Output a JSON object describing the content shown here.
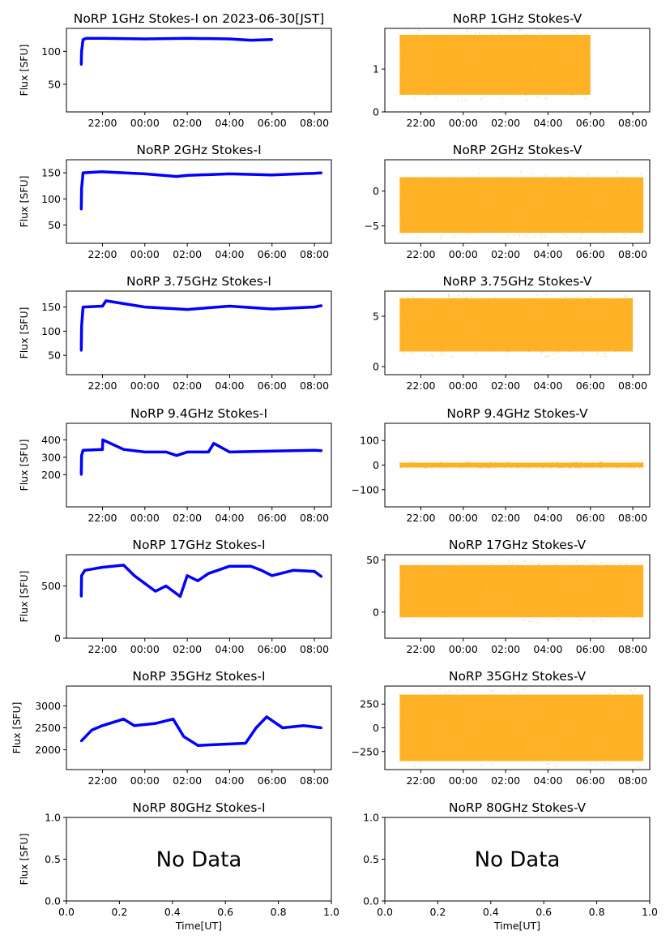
{
  "figure": {
    "ylabel": "Flux [SFU]",
    "xlabel": "Time[UT]",
    "time_ticks": [
      "22:00",
      "00:00",
      "02:00",
      "04:00",
      "06:00",
      "08:00"
    ],
    "no_data_text": "No Data",
    "colors": {
      "stokes_i": "#0000ff",
      "stokes_v": "#ffa500",
      "axes": "#000000"
    }
  },
  "chart_data": [
    {
      "type": "scatter",
      "title": "NoRP 1GHz Stokes-I on 2023-06-30[JST]",
      "panel": "1GHz-I",
      "ylim": [
        8,
        135
      ],
      "yticks": [
        50,
        100
      ],
      "ylabel": "Flux [SFU]",
      "series": [
        {
          "x": [
            "21:00",
            "21:01",
            "21:05",
            "21:15",
            "22:00",
            "00:00",
            "02:00",
            "04:00",
            "05:00",
            "06:00"
          ],
          "y": [
            80,
            100,
            118,
            120,
            120,
            119,
            120,
            119,
            117,
            118
          ]
        }
      ]
    },
    {
      "type": "scatter",
      "title": "NoRP 1GHz Stokes-V",
      "panel": "1GHz-V",
      "ylim": [
        0,
        1.95
      ],
      "yticks": [
        0,
        1
      ],
      "series": [
        {
          "x": [
            "21:00",
            "22:00",
            "23:00",
            "00:00",
            "01:00",
            "02:00",
            "03:00",
            "04:00",
            "05:00",
            "06:00"
          ],
          "y": [
            1.1,
            1.0,
            1.1,
            1.2,
            1.1,
            1.2,
            1.2,
            1.1,
            1.1,
            1.1
          ],
          "spread": [
            0.4,
            1.8
          ]
        }
      ]
    },
    {
      "type": "scatter",
      "title": "NoRP 2GHz Stokes-I",
      "panel": "2GHz-I",
      "ylim": [
        15,
        175
      ],
      "yticks": [
        50,
        100,
        150
      ],
      "ylabel": "Flux [SFU]",
      "series": [
        {
          "x": [
            "21:00",
            "21:01",
            "21:05",
            "22:00",
            "00:00",
            "01:30",
            "02:00",
            "04:00",
            "06:00",
            "08:00",
            "08:20"
          ],
          "y": [
            80,
            120,
            150,
            152,
            148,
            143,
            145,
            148,
            146,
            149,
            150
          ]
        }
      ]
    },
    {
      "type": "scatter",
      "title": "NoRP 2GHz Stokes-V",
      "panel": "2GHz-V",
      "ylim": [
        -7.5,
        4.5
      ],
      "yticks": [
        -5,
        0
      ],
      "series": [
        {
          "x": [
            "21:00",
            "08:30"
          ],
          "y": [
            -2,
            -2
          ],
          "spread": [
            -6,
            2
          ]
        }
      ]
    },
    {
      "type": "scatter",
      "title": "NoRP 3.75GHz Stokes-I",
      "panel": "3.75GHz-I",
      "ylim": [
        10,
        183
      ],
      "yticks": [
        50,
        100,
        150
      ],
      "ylabel": "Flux [SFU]",
      "series": [
        {
          "x": [
            "21:00",
            "21:01",
            "21:05",
            "22:00",
            "22:10",
            "00:00",
            "02:00",
            "04:00",
            "06:00",
            "08:00",
            "08:20"
          ],
          "y": [
            60,
            110,
            150,
            152,
            163,
            150,
            145,
            152,
            146,
            150,
            153
          ]
        }
      ]
    },
    {
      "type": "scatter",
      "title": "NoRP 3.75GHz Stokes-V",
      "panel": "3.75GHz-V",
      "ylim": [
        -0.8,
        7.5
      ],
      "yticks": [
        0,
        5
      ],
      "series": [
        {
          "x": [
            "21:00",
            "22:00",
            "23:00",
            "00:00",
            "01:00",
            "02:00",
            "03:00",
            "04:00",
            "05:00",
            "06:00",
            "07:00",
            "08:00"
          ],
          "y": [
            4,
            4.5,
            4.6,
            4.2,
            4.0,
            3.8,
            4.2,
            4.1,
            4.0,
            3.8,
            3.7,
            3.8
          ],
          "spread": [
            1.5,
            6.8
          ]
        }
      ]
    },
    {
      "type": "scatter",
      "title": "NoRP 9.4GHz Stokes-I",
      "panel": "9.4GHz-I",
      "ylim": [
        15,
        495
      ],
      "yticks": [
        200,
        300,
        400
      ],
      "ylabel": "Flux [SFU]",
      "series": [
        {
          "x": [
            "21:00",
            "21:01",
            "21:05",
            "22:00",
            "22:01",
            "23:00",
            "00:00",
            "01:00",
            "01:30",
            "02:00",
            "03:00",
            "03:15",
            "04:00",
            "06:00",
            "08:00",
            "08:20"
          ],
          "y": [
            200,
            310,
            340,
            345,
            400,
            345,
            330,
            330,
            310,
            330,
            330,
            380,
            330,
            335,
            340,
            338
          ]
        }
      ]
    },
    {
      "type": "scatter",
      "title": "NoRP 9.4GHz Stokes-V",
      "panel": "9.4GHz-V",
      "ylim": [
        -170,
        170
      ],
      "yticks": [
        -100,
        0,
        100
      ],
      "series": [
        {
          "x": [
            "21:00",
            "08:30"
          ],
          "y": [
            0,
            0
          ],
          "spread": [
            -10,
            10
          ]
        }
      ]
    },
    {
      "type": "scatter",
      "title": "NoRP 17GHz Stokes-I",
      "panel": "17GHz-I",
      "ylim": [
        0,
        800
      ],
      "yticks": [
        0,
        500
      ],
      "ylabel": "Flux [SFU]",
      "series": [
        {
          "x": [
            "21:00",
            "21:01",
            "21:10",
            "22:00",
            "23:00",
            "23:30",
            "00:30",
            "01:00",
            "01:40",
            "02:00",
            "02:30",
            "03:00",
            "04:00",
            "05:00",
            "05:30",
            "06:00",
            "07:00",
            "08:00",
            "08:20"
          ],
          "y": [
            400,
            600,
            650,
            680,
            700,
            600,
            450,
            500,
            400,
            600,
            550,
            620,
            690,
            690,
            650,
            600,
            650,
            640,
            590
          ]
        }
      ]
    },
    {
      "type": "scatter",
      "title": "NoRP 17GHz Stokes-V",
      "panel": "17GHz-V",
      "ylim": [
        -25,
        55
      ],
      "yticks": [
        0,
        50
      ],
      "series": [
        {
          "x": [
            "21:00",
            "08:30"
          ],
          "y": [
            15,
            15
          ],
          "spread": [
            -5,
            45
          ]
        }
      ]
    },
    {
      "type": "scatter",
      "title": "NoRP 35GHz Stokes-I",
      "panel": "35GHz-I",
      "ylim": [
        1550,
        3450
      ],
      "yticks": [
        2000,
        2500,
        3000
      ],
      "ylabel": "Flux [SFU]",
      "series": [
        {
          "x": [
            "21:00",
            "21:30",
            "22:00",
            "23:00",
            "23:30",
            "00:30",
            "01:20",
            "01:50",
            "02:30",
            "04:45",
            "05:15",
            "05:45",
            "06:30",
            "07:30",
            "08:20"
          ],
          "y": [
            2200,
            2450,
            2550,
            2700,
            2550,
            2600,
            2700,
            2300,
            2100,
            2150,
            2500,
            2750,
            2500,
            2550,
            2500
          ]
        }
      ]
    },
    {
      "type": "scatter",
      "title": "NoRP 35GHz Stokes-V",
      "panel": "35GHz-V",
      "ylim": [
        -440,
        440
      ],
      "yticks": [
        -250,
        0,
        250
      ],
      "series": [
        {
          "x": [
            "21:00",
            "08:30"
          ],
          "y": [
            0,
            0
          ],
          "spread": [
            -350,
            350
          ]
        }
      ]
    },
    {
      "type": "scatter",
      "title": "NoRP 80GHz Stokes-I",
      "panel": "80GHz-I",
      "xlim": [
        0,
        1
      ],
      "ylim": [
        0,
        1
      ],
      "xlabel": "Time[UT]",
      "ylabel": "Flux [SFU]",
      "xticks": [
        "0.0",
        "0.2",
        "0.4",
        "0.6",
        "0.8",
        "1.0"
      ],
      "yticks": [
        "0.0",
        "0.5",
        "1.0"
      ],
      "series": []
    },
    {
      "type": "scatter",
      "title": "NoRP 80GHz Stokes-V",
      "panel": "80GHz-V",
      "xlim": [
        0,
        1
      ],
      "ylim": [
        0,
        1
      ],
      "xlabel": "Time[UT]",
      "xticks": [
        "0.0",
        "0.2",
        "0.4",
        "0.6",
        "0.8",
        "1.0"
      ],
      "yticks": [
        "0.0",
        "0.5",
        "1.0"
      ],
      "series": []
    }
  ]
}
